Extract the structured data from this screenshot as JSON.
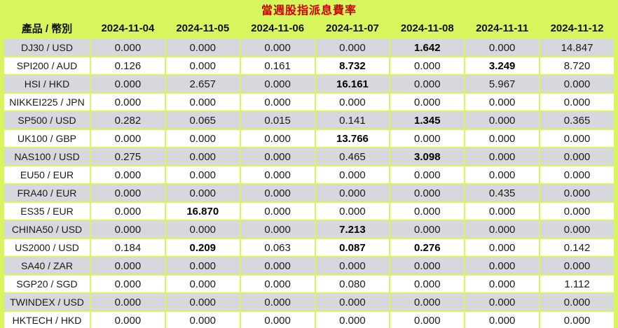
{
  "title": "當週股指派息費率",
  "colors": {
    "background_green": "#d7f55c",
    "row_gray": "#d6d8dd",
    "row_white": "#ffffff",
    "title_red": "#d00000",
    "text": "#1f1f1f"
  },
  "table": {
    "columns": [
      "產品 / 幣別",
      "2024-11-04",
      "2024-11-05",
      "2024-11-06",
      "2024-11-07",
      "2024-11-08",
      "2024-11-11",
      "2024-11-12"
    ],
    "rows": [
      {
        "product": "DJ30 / USD",
        "values": [
          "0.000",
          "0.000",
          "0.000",
          "0.000",
          "1.642",
          "0.000",
          "14.847"
        ],
        "bold": [
          4
        ]
      },
      {
        "product": "SPI200 / AUD",
        "values": [
          "0.126",
          "0.000",
          "0.161",
          "8.732",
          "0.000",
          "3.249",
          "8.720"
        ],
        "bold": [
          3,
          5
        ]
      },
      {
        "product": "HSI / HKD",
        "values": [
          "0.000",
          "2.657",
          "0.000",
          "16.161",
          "0.000",
          "5.967",
          "0.000"
        ],
        "bold": [
          3
        ]
      },
      {
        "product": "NIKKEI225 / JPN",
        "values": [
          "0.000",
          "0.000",
          "0.000",
          "0.000",
          "0.000",
          "0.000",
          "0.000"
        ],
        "bold": []
      },
      {
        "product": "SP500 / USD",
        "values": [
          "0.282",
          "0.065",
          "0.015",
          "0.141",
          "1.345",
          "0.000",
          "0.365"
        ],
        "bold": [
          4
        ]
      },
      {
        "product": "UK100 / GBP",
        "values": [
          "0.000",
          "0.000",
          "0.000",
          "13.766",
          "0.000",
          "0.000",
          "0.000"
        ],
        "bold": [
          3
        ]
      },
      {
        "product": "NAS100 / USD",
        "values": [
          "0.275",
          "0.000",
          "0.000",
          "0.465",
          "3.098",
          "0.000",
          "0.000"
        ],
        "bold": [
          4
        ]
      },
      {
        "product": "EU50 / EUR",
        "values": [
          "0.000",
          "0.000",
          "0.000",
          "0.000",
          "0.000",
          "0.000",
          "0.000"
        ],
        "bold": []
      },
      {
        "product": "FRA40 / EUR",
        "values": [
          "0.000",
          "0.000",
          "0.000",
          "0.000",
          "0.000",
          "0.435",
          "0.000"
        ],
        "bold": []
      },
      {
        "product": "ES35 / EUR",
        "values": [
          "0.000",
          "16.870",
          "0.000",
          "0.000",
          "0.000",
          "0.000",
          "0.000"
        ],
        "bold": [
          1
        ]
      },
      {
        "product": "CHINA50 / USD",
        "values": [
          "0.000",
          "0.000",
          "0.000",
          "7.213",
          "0.000",
          "0.000",
          "0.000"
        ],
        "bold": [
          3
        ]
      },
      {
        "product": "US2000 / USD",
        "values": [
          "0.184",
          "0.209",
          "0.063",
          "0.087",
          "0.276",
          "0.000",
          "0.142"
        ],
        "bold": [
          1,
          3,
          4
        ]
      },
      {
        "product": "SA40 / ZAR",
        "values": [
          "0.000",
          "0.000",
          "0.000",
          "0.000",
          "0.000",
          "0.000",
          "0.000"
        ],
        "bold": []
      },
      {
        "product": "SGP20 / SGD",
        "values": [
          "0.000",
          "0.000",
          "0.000",
          "0.080",
          "0.000",
          "0.000",
          "1.112"
        ],
        "bold": []
      },
      {
        "product": "TWINDEX / USD",
        "values": [
          "0.000",
          "0.000",
          "0.000",
          "0.000",
          "0.000",
          "0.000",
          "0.000"
        ],
        "bold": []
      },
      {
        "product": "HKTECH / HKD",
        "values": [
          "0.000",
          "0.000",
          "0.000",
          "0.000",
          "0.000",
          "0.000",
          "0.000"
        ],
        "bold": []
      }
    ]
  }
}
